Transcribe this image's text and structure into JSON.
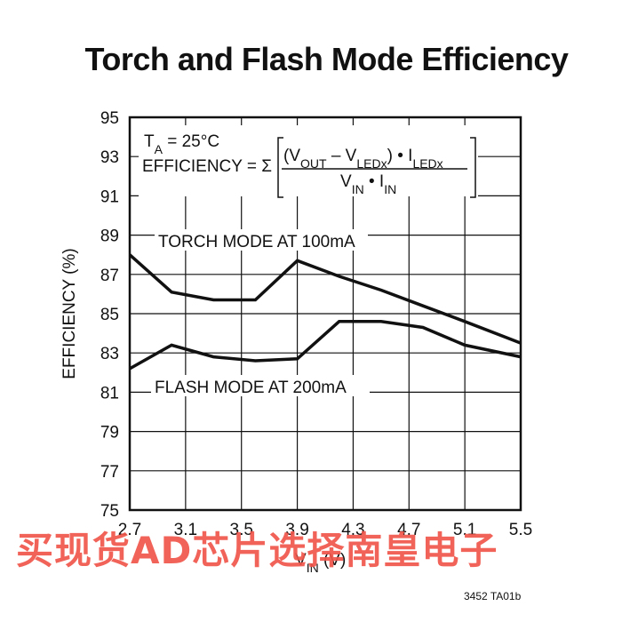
{
  "figure_code": "3452 TA01b",
  "watermark": "买现货AD芯片选择南皇电子",
  "chart_data": {
    "type": "line",
    "title": "Torch and Flash Mode Efficiency",
    "xlabel": "V_IN (V)",
    "ylabel": "EFFICIENCY (%)",
    "xlim": [
      2.7,
      5.5
    ],
    "ylim": [
      75,
      95
    ],
    "x_ticks": [
      "2.7",
      "3.1",
      "3.5",
      "3.9",
      "4.3",
      "4.7",
      "5.1",
      "5.5"
    ],
    "y_ticks": [
      "95",
      "93",
      "91",
      "89",
      "87",
      "85",
      "83",
      "81",
      "79",
      "77",
      "75"
    ],
    "grid": true,
    "annotations": {
      "temp": "T_A = 25°C",
      "efficiency_prefix": "EFFICIENCY = Σ",
      "numerator": "(V_OUT – V_LEDx) • I_LEDx",
      "denominator": "V_IN • I_IN"
    },
    "series": [
      {
        "name": "TORCH MODE AT 100mA",
        "x": [
          2.7,
          3.0,
          3.3,
          3.6,
          3.9,
          4.2,
          4.5,
          4.8,
          5.1,
          5.5
        ],
        "y": [
          88.0,
          86.1,
          85.7,
          85.7,
          87.7,
          86.9,
          86.2,
          85.4,
          84.6,
          83.5
        ]
      },
      {
        "name": "FLASH MODE AT 200mA",
        "x": [
          2.7,
          3.0,
          3.3,
          3.6,
          3.9,
          4.2,
          4.5,
          4.8,
          5.1,
          5.5
        ],
        "y": [
          82.2,
          83.4,
          82.8,
          82.6,
          82.7,
          84.6,
          84.6,
          84.3,
          83.4,
          82.8
        ]
      }
    ]
  }
}
